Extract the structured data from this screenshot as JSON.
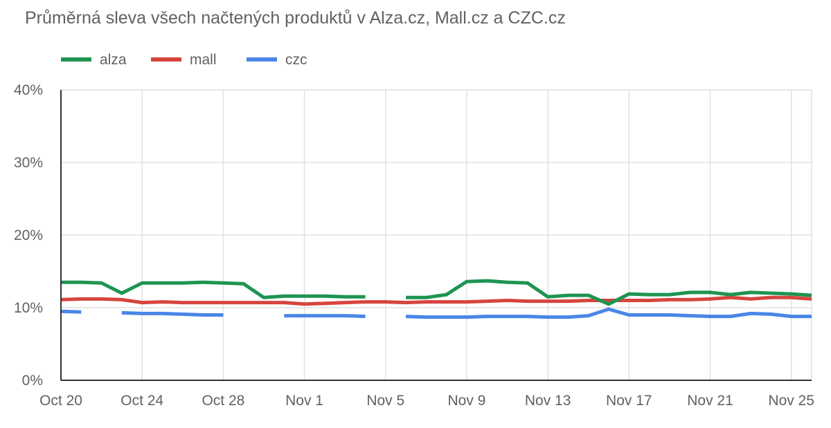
{
  "chart_data": {
    "type": "line",
    "title": "Průměrná sleva všech načtených produktů v Alza.cz, Mall.cz a CZC.cz",
    "xlabel": "",
    "ylabel": "",
    "x": [
      "2020-10-20",
      "2020-10-21",
      "2020-10-22",
      "2020-10-23",
      "2020-10-24",
      "2020-10-25",
      "2020-10-26",
      "2020-10-27",
      "2020-10-28",
      "2020-10-29",
      "2020-10-30",
      "2020-10-31",
      "2020-11-01",
      "2020-11-02",
      "2020-11-03",
      "2020-11-04",
      "2020-11-05",
      "2020-11-06",
      "2020-11-07",
      "2020-11-08",
      "2020-11-09",
      "2020-11-10",
      "2020-11-11",
      "2020-11-12",
      "2020-11-13",
      "2020-11-14",
      "2020-11-15",
      "2020-11-16",
      "2020-11-17",
      "2020-11-18",
      "2020-11-19",
      "2020-11-20",
      "2020-11-21",
      "2020-11-22",
      "2020-11-23",
      "2020-11-24",
      "2020-11-25",
      "2020-11-26"
    ],
    "x_ticks": [
      "Oct 20",
      "Oct 24",
      "Oct 28",
      "Nov 1",
      "Nov 5",
      "Nov 9",
      "Nov 13",
      "Nov 17",
      "Nov 21",
      "Nov 25"
    ],
    "y_ticks": [
      "0%",
      "10%",
      "20%",
      "30%",
      "40%"
    ],
    "ylim": [
      0,
      40
    ],
    "y_unit": "%",
    "grid": true,
    "legend_position": "top-left",
    "series": [
      {
        "name": "alza",
        "color": "#1e9451",
        "values": [
          13.5,
          13.5,
          13.4,
          12.0,
          13.4,
          13.4,
          13.4,
          13.5,
          13.4,
          13.3,
          11.4,
          11.6,
          11.6,
          11.6,
          11.5,
          11.5,
          null,
          11.4,
          11.4,
          11.8,
          13.6,
          13.7,
          13.5,
          13.4,
          11.5,
          11.7,
          11.7,
          10.5,
          11.9,
          11.8,
          11.8,
          12.1,
          12.1,
          11.8,
          12.1,
          12.0,
          11.9,
          11.7
        ]
      },
      {
        "name": "mall",
        "color": "#d6453d",
        "values": [
          11.1,
          11.2,
          11.2,
          11.1,
          10.7,
          10.8,
          10.7,
          10.7,
          10.7,
          10.7,
          10.7,
          10.7,
          10.5,
          10.6,
          10.7,
          10.8,
          10.8,
          10.7,
          10.8,
          10.8,
          10.8,
          10.9,
          11.0,
          10.9,
          10.9,
          10.9,
          11.0,
          11.0,
          11.0,
          11.0,
          11.1,
          11.1,
          11.2,
          11.4,
          11.2,
          11.4,
          11.4,
          11.2
        ]
      },
      {
        "name": "czc",
        "color": "#4a86e8",
        "values": [
          9.5,
          9.4,
          null,
          9.3,
          9.2,
          9.2,
          9.1,
          9.0,
          9.0,
          null,
          null,
          8.9,
          8.9,
          8.9,
          8.9,
          8.8,
          null,
          8.8,
          8.7,
          8.7,
          8.7,
          8.8,
          8.8,
          8.8,
          8.7,
          8.7,
          8.9,
          9.8,
          9.0,
          9.0,
          9.0,
          8.9,
          8.8,
          8.8,
          9.2,
          9.1,
          8.8,
          8.8
        ]
      }
    ]
  }
}
